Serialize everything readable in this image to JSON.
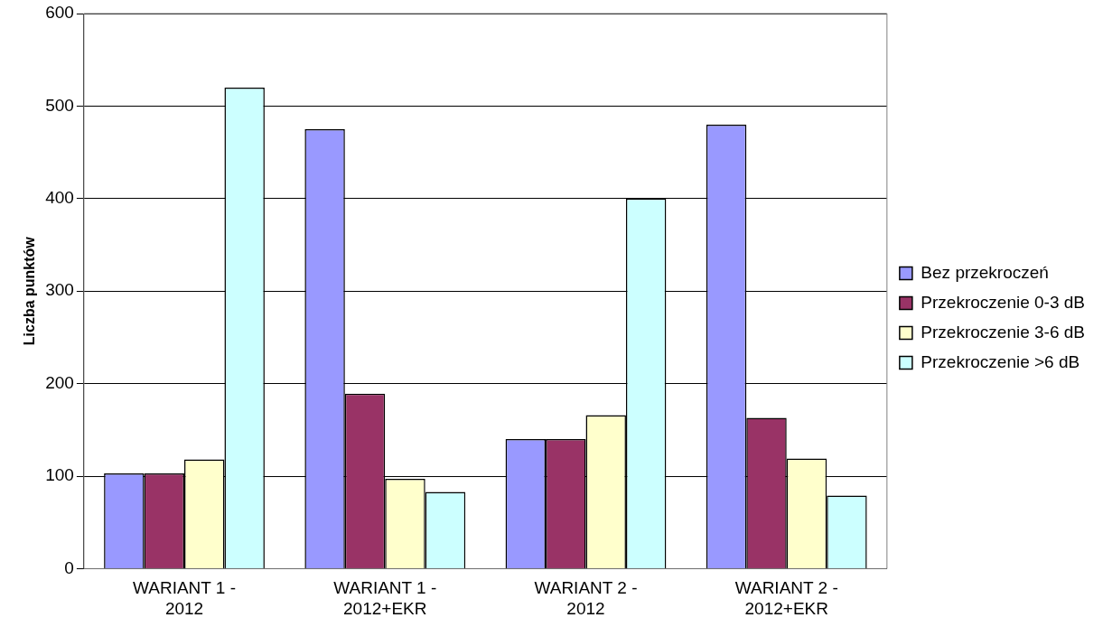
{
  "chart_data": {
    "type": "bar",
    "ylabel": "Liczba punktów",
    "categories": [
      "WARIANT 1 - 2012",
      "WARIANT 1 - 2012+EKR",
      "WARIANT 2 - 2012",
      "WARIANT 2 - 2012+EKR"
    ],
    "series": [
      {
        "name": "Bez przekroczeń",
        "color": "#9999ff",
        "values": [
          103,
          475,
          140,
          480
        ]
      },
      {
        "name": "Przekroczenie 0-3 dB",
        "color": "#993366",
        "values": [
          103,
          189,
          140,
          163
        ]
      },
      {
        "name": "Przekroczenie 3-6 dB",
        "color": "#ffffcc",
        "values": [
          118,
          97,
          166,
          119
        ]
      },
      {
        "name": "Przekroczenie >6 dB",
        "color": "#ccffff",
        "values": [
          520,
          83,
          400,
          79
        ]
      }
    ],
    "ylim": [
      0,
      600
    ],
    "yticks": [
      0,
      100,
      200,
      300,
      400,
      500,
      600
    ],
    "grid": "y",
    "legend": "right"
  }
}
